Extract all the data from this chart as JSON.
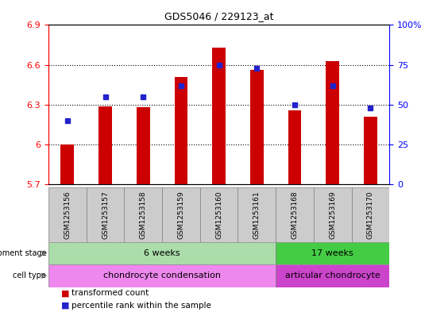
{
  "title": "GDS5046 / 229123_at",
  "samples": [
    "GSM1253156",
    "GSM1253157",
    "GSM1253158",
    "GSM1253159",
    "GSM1253160",
    "GSM1253161",
    "GSM1253168",
    "GSM1253169",
    "GSM1253170"
  ],
  "transformed_count": [
    6.0,
    6.29,
    6.28,
    6.51,
    6.73,
    6.56,
    6.26,
    6.63,
    6.21
  ],
  "percentile_rank": [
    40,
    55,
    55,
    62,
    75,
    73,
    50,
    62,
    48
  ],
  "ylim": [
    5.7,
    6.9
  ],
  "yticks": [
    5.7,
    6.0,
    6.3,
    6.6,
    6.9
  ],
  "ytick_labels": [
    "5.7",
    "6",
    "6.3",
    "6.6",
    "6.9"
  ],
  "y2lim": [
    0,
    100
  ],
  "y2ticks": [
    0,
    25,
    50,
    75,
    100
  ],
  "y2tick_labels": [
    "0",
    "25",
    "50",
    "75",
    "100%"
  ],
  "bar_color": "#cc0000",
  "dot_color": "#2222cc",
  "bar_bottom": 5.7,
  "bar_width": 0.35,
  "development_stage_groups": [
    {
      "label": "6 weeks",
      "start": 0,
      "end": 5,
      "color": "#aaddaa"
    },
    {
      "label": "17 weeks",
      "start": 6,
      "end": 8,
      "color": "#44cc44"
    }
  ],
  "cell_type_groups": [
    {
      "label": "chondrocyte condensation",
      "start": 0,
      "end": 5,
      "color": "#ee88ee"
    },
    {
      "label": "articular chondrocyte",
      "start": 6,
      "end": 8,
      "color": "#cc44cc"
    }
  ],
  "legend_items": [
    {
      "color": "#cc0000",
      "label": "transformed count",
      "marker": "s"
    },
    {
      "color": "#2222cc",
      "label": "percentile rank within the sample",
      "marker": "s"
    }
  ],
  "left_labels": [
    "development stage",
    "cell type"
  ],
  "grid_yticks": [
    6.0,
    6.3,
    6.6
  ],
  "sample_box_color": "#cccccc",
  "spine_color_left": "red",
  "spine_color_right": "blue"
}
